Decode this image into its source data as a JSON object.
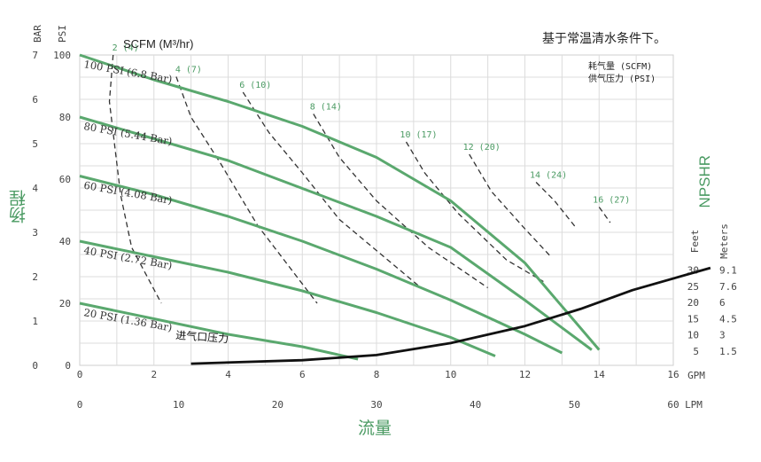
{
  "chart_data": {
    "type": "line",
    "title": "基于常温清水条件下。",
    "scfm_title": "SCFM (M³/hr)",
    "legend": [
      "耗气量 (SCFM)",
      "供气压力 (PSI)"
    ],
    "xlabel": "流量",
    "ylabel": "扬程",
    "right_label": "NPSHR",
    "axes": {
      "psi": {
        "label": "PSI",
        "ticks": [
          "0",
          "20",
          "40",
          "60",
          "80",
          "100"
        ],
        "range": [
          0,
          100
        ]
      },
      "bar": {
        "label": "BAR",
        "ticks": [
          "0",
          "1",
          "2",
          "3",
          "4",
          "5",
          "6",
          "7"
        ],
        "range": [
          0,
          7
        ]
      },
      "gpm": {
        "label": "GPM",
        "ticks": [
          "0",
          "2",
          "4",
          "6",
          "8",
          "10",
          "12",
          "14",
          "16"
        ],
        "range": [
          0,
          16
        ]
      },
      "lpm": {
        "label": "LPM",
        "ticks": [
          "0",
          "10",
          "20",
          "30",
          "40",
          "50",
          "60"
        ],
        "range": [
          0,
          60
        ]
      },
      "feet": {
        "label": "Feet",
        "ticks": [
          "5",
          "10",
          "15",
          "20",
          "25",
          "30"
        ],
        "range": [
          0,
          35
        ]
      },
      "meters": {
        "label": "Meters",
        "ticks": [
          "1.5",
          "3",
          "4.5",
          "6",
          "7.6",
          "9.1"
        ]
      }
    },
    "pressure_curves": [
      {
        "name": "100 PSI (6.8 Bar)",
        "points": [
          [
            0,
            100
          ],
          [
            2,
            92
          ],
          [
            4,
            85
          ],
          [
            6,
            77
          ],
          [
            8,
            67
          ],
          [
            10,
            53
          ],
          [
            12,
            33
          ],
          [
            14,
            5
          ]
        ]
      },
      {
        "name": "80 PSI (5.44 Bar)",
        "points": [
          [
            0,
            80
          ],
          [
            2,
            73
          ],
          [
            4,
            66
          ],
          [
            6,
            57
          ],
          [
            8,
            48
          ],
          [
            10,
            38
          ],
          [
            12,
            21
          ],
          [
            13.8,
            5
          ]
        ]
      },
      {
        "name": "60 PSI (4.08 Bar)",
        "points": [
          [
            0,
            61
          ],
          [
            2,
            55
          ],
          [
            4,
            48
          ],
          [
            6,
            40
          ],
          [
            8,
            31
          ],
          [
            10,
            21
          ],
          [
            12,
            10
          ],
          [
            13,
            4
          ]
        ]
      },
      {
        "name": "40 PSI (2.72 Bar)",
        "points": [
          [
            0,
            40
          ],
          [
            2,
            35
          ],
          [
            4,
            30
          ],
          [
            6,
            24
          ],
          [
            8,
            17
          ],
          [
            10,
            9
          ],
          [
            11.2,
            3
          ]
        ]
      },
      {
        "name": "20 PSI (1.36 Bar)",
        "points": [
          [
            0,
            20
          ],
          [
            2,
            15
          ],
          [
            4,
            10
          ],
          [
            6,
            6
          ],
          [
            7.5,
            2
          ]
        ]
      }
    ],
    "air_consumption_curves": [
      {
        "label": "2 (4)",
        "points": [
          [
            0.9,
            100
          ],
          [
            0.8,
            85
          ],
          [
            1.1,
            55
          ],
          [
            1.4,
            38
          ],
          [
            2.2,
            20
          ]
        ]
      },
      {
        "label": "4 (7)",
        "points": [
          [
            2.6,
            93
          ],
          [
            3.0,
            80
          ],
          [
            3.8,
            65
          ],
          [
            4.8,
            45
          ],
          [
            6.4,
            20
          ]
        ]
      },
      {
        "label": "6 (10)",
        "points": [
          [
            4.4,
            88
          ],
          [
            5.1,
            75
          ],
          [
            6.0,
            62
          ],
          [
            7.0,
            47
          ],
          [
            9.2,
            25
          ]
        ]
      },
      {
        "label": "8 (14)",
        "points": [
          [
            6.3,
            81
          ],
          [
            7.0,
            67
          ],
          [
            8.0,
            53
          ],
          [
            9.4,
            38
          ],
          [
            11.0,
            25
          ]
        ]
      },
      {
        "label": "10 (17)",
        "points": [
          [
            8.8,
            72
          ],
          [
            9.3,
            62
          ],
          [
            10.2,
            49
          ],
          [
            11.5,
            34
          ],
          [
            12.5,
            27
          ]
        ]
      },
      {
        "label": "12 (20)",
        "points": [
          [
            10.5,
            68
          ],
          [
            11.1,
            56
          ],
          [
            12.0,
            44
          ],
          [
            12.7,
            35
          ]
        ]
      },
      {
        "label": "14 (24)",
        "points": [
          [
            12.3,
            59
          ],
          [
            12.8,
            53
          ],
          [
            13.4,
            44
          ]
        ]
      },
      {
        "label": "16 (27)",
        "points": [
          [
            14.0,
            51
          ],
          [
            14.3,
            46
          ]
        ]
      }
    ],
    "npshr_curve": {
      "label": "进气口压力",
      "points": [
        [
          3.0,
          3
        ],
        [
          6.0,
          4
        ],
        [
          8.0,
          5.5
        ],
        [
          10.0,
          9
        ],
        [
          12.0,
          14
        ],
        [
          13.5,
          19
        ],
        [
          14.9,
          24.5
        ],
        [
          17.0,
          31
        ]
      ]
    }
  }
}
